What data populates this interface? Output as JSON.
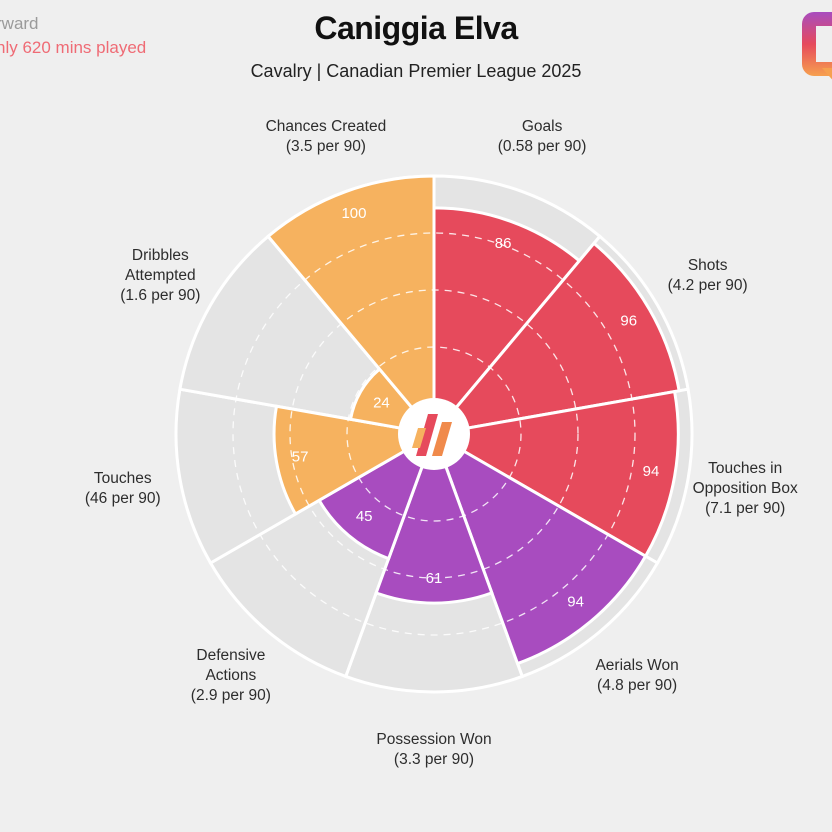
{
  "header": {
    "position_label": "rward",
    "minutes_note": "nly 620 mins played",
    "title": "Caniggia Elva",
    "subtitle": "Cavalry | Canadian Premier League 2025"
  },
  "colors": {
    "attacking": "#e64a5c",
    "possession": "#f6b25f",
    "defending": "#a84cbf",
    "background_slice": "#e4e4e4",
    "page_background": "#efefef"
  },
  "chart_data": {
    "type": "polar-bar",
    "max_value": 100,
    "grid": true,
    "categories": [
      {
        "label": [
          "Goals"
        ],
        "per90": "(0.58 per 90)",
        "value": 86,
        "group": "attacking"
      },
      {
        "label": [
          "Shots"
        ],
        "per90": "(4.2 per 90)",
        "value": 96,
        "group": "attacking"
      },
      {
        "label": [
          "Touches in",
          "Opposition Box"
        ],
        "per90": "(7.1 per 90)",
        "value": 94,
        "group": "attacking"
      },
      {
        "label": [
          "Aerials Won"
        ],
        "per90": "(4.8 per 90)",
        "value": 94,
        "group": "defending"
      },
      {
        "label": [
          "Possession Won"
        ],
        "per90": "(3.3 per 90)",
        "value": 61,
        "group": "defending"
      },
      {
        "label": [
          "Defensive",
          "Actions"
        ],
        "per90": "(2.9 per 90)",
        "value": 45,
        "group": "defending"
      },
      {
        "label": [
          "Touches"
        ],
        "per90": "(46 per 90)",
        "value": 57,
        "group": "possession"
      },
      {
        "label": [
          "Dribbles",
          "Attempted"
        ],
        "per90": "(1.6 per 90)",
        "value": 24,
        "group": "possession"
      },
      {
        "label": [
          "Chances Created"
        ],
        "per90": "(3.5 per 90)",
        "value": 100,
        "group": "possession"
      }
    ]
  }
}
